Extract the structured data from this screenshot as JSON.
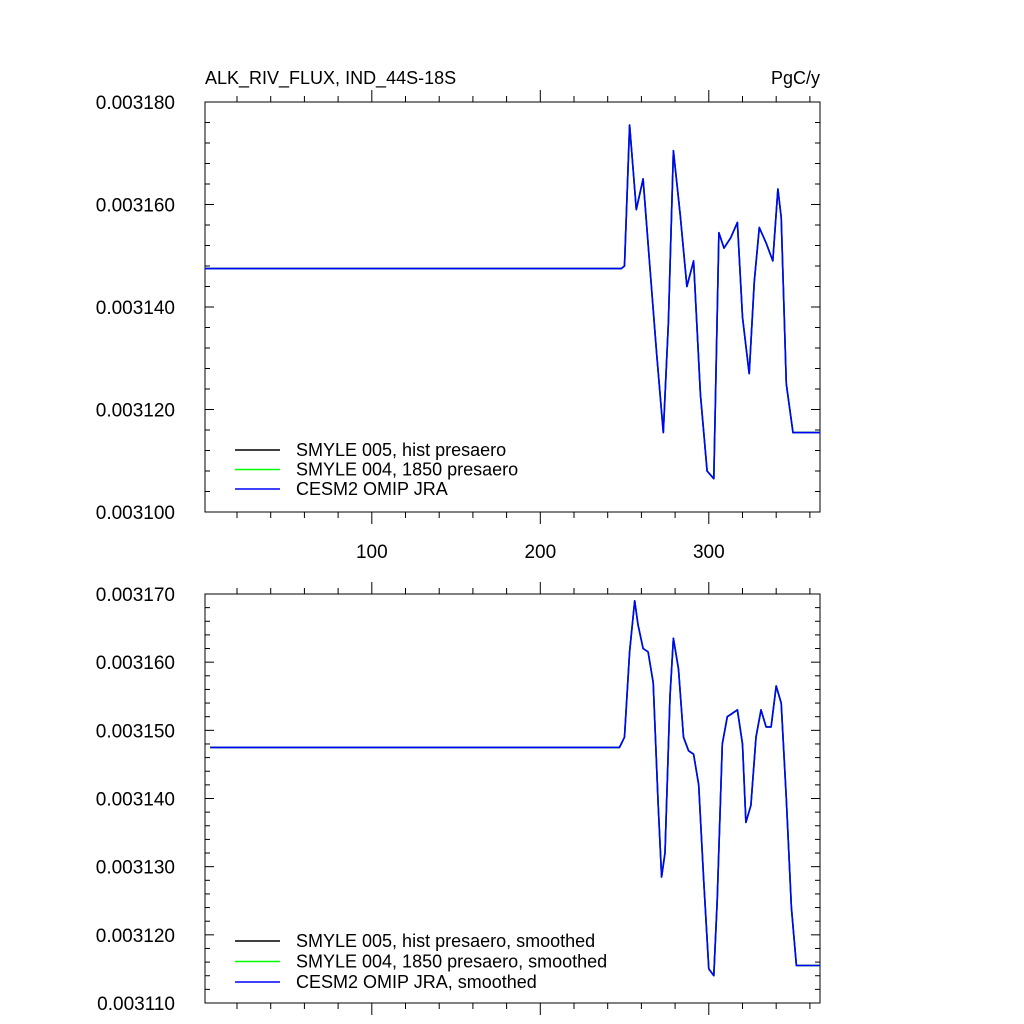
{
  "chart_data": [
    {
      "type": "line",
      "title": "ALK_RIV_FLUX, IND_44S-18S",
      "units": "PgC/y",
      "xlim": [
        1,
        366
      ],
      "ylim": [
        0.0031,
        0.00318
      ],
      "xticks": [
        100,
        200,
        300
      ],
      "xtick_labels": [
        "100",
        "200",
        "300"
      ],
      "yticks": [
        0.0031,
        0.00312,
        0.00314,
        0.00316,
        0.00318
      ],
      "ytick_labels": [
        "0.003100",
        "0.003120",
        "0.003140",
        "0.003160",
        "0.003180"
      ],
      "grid": false,
      "legend_position": "bottom-left",
      "series": [
        {
          "name": "SMYLE 005, hist presaero",
          "color": "#000000",
          "x": [
            1,
            248,
            250,
            253,
            257,
            261,
            265,
            269,
            273,
            276,
            279,
            283,
            287,
            291,
            295,
            299,
            303,
            306,
            309,
            313,
            317,
            320,
            324,
            327,
            330,
            334,
            338,
            341,
            343,
            346,
            350,
            366
          ],
          "y": [
            0.0031475,
            0.0031475,
            0.003148,
            0.0031755,
            0.003159,
            0.003165,
            0.003148,
            0.003131,
            0.0031155,
            0.003137,
            0.0031705,
            0.003158,
            0.003144,
            0.003149,
            0.003123,
            0.003108,
            0.0031065,
            0.0031545,
            0.0031515,
            0.0031535,
            0.0031565,
            0.003138,
            0.003127,
            0.003145,
            0.0031555,
            0.0031525,
            0.003149,
            0.003163,
            0.0031575,
            0.003125,
            0.0031155,
            0.0031155
          ]
        },
        {
          "name": "SMYLE 004, 1850 presaero",
          "color": "#00ff00",
          "x": [
            1,
            248,
            250,
            253,
            257,
            261,
            265,
            269,
            273,
            276,
            279,
            283,
            287,
            291,
            295,
            299,
            303,
            306,
            309,
            313,
            317,
            320,
            324,
            327,
            330,
            334,
            338,
            341,
            343,
            346,
            350,
            366
          ],
          "y": [
            0.0031475,
            0.0031475,
            0.003148,
            0.0031755,
            0.003159,
            0.003165,
            0.003148,
            0.003131,
            0.0031155,
            0.003137,
            0.0031705,
            0.003158,
            0.003144,
            0.003149,
            0.003123,
            0.003108,
            0.0031065,
            0.0031545,
            0.0031515,
            0.0031535,
            0.0031565,
            0.003138,
            0.003127,
            0.003145,
            0.0031555,
            0.0031525,
            0.003149,
            0.003163,
            0.0031575,
            0.003125,
            0.0031155,
            0.0031155
          ]
        },
        {
          "name": "CESM2 OMIP JRA",
          "color": "#0000ff",
          "x": [
            1,
            248,
            250,
            253,
            257,
            261,
            265,
            269,
            273,
            276,
            279,
            283,
            287,
            291,
            295,
            299,
            303,
            306,
            309,
            313,
            317,
            320,
            324,
            327,
            330,
            334,
            338,
            341,
            343,
            346,
            350,
            366
          ],
          "y": [
            0.0031475,
            0.0031475,
            0.003148,
            0.0031755,
            0.003159,
            0.003165,
            0.003148,
            0.003131,
            0.0031155,
            0.003137,
            0.0031705,
            0.003158,
            0.003144,
            0.003149,
            0.003123,
            0.003108,
            0.0031065,
            0.0031545,
            0.0031515,
            0.0031535,
            0.0031565,
            0.003138,
            0.003127,
            0.003145,
            0.0031555,
            0.0031525,
            0.003149,
            0.003163,
            0.0031575,
            0.003125,
            0.0031155,
            0.0031155
          ]
        }
      ]
    },
    {
      "type": "line",
      "title": "",
      "xlim": [
        1,
        366
      ],
      "ylim": [
        0.00311,
        0.00317
      ],
      "xticks": [
        100,
        200,
        300
      ],
      "xtick_labels": [],
      "yticks": [
        0.00311,
        0.00312,
        0.00313,
        0.00314,
        0.00315,
        0.00316,
        0.00317
      ],
      "ytick_labels": [
        "0.003110",
        "0.003120",
        "0.003130",
        "0.003140",
        "0.003150",
        "0.003160",
        "0.003170"
      ],
      "grid": false,
      "legend_position": "bottom-left",
      "series": [
        {
          "name": "SMYLE 005, hist presaero, smoothed",
          "color": "#000000",
          "x": [
            4,
            247,
            250,
            253,
            256,
            258,
            261,
            264,
            267,
            270,
            272,
            274,
            277,
            279,
            282,
            285,
            288,
            291,
            294,
            297,
            300,
            303,
            305,
            308,
            311,
            314,
            317,
            320,
            322,
            325,
            328,
            331,
            334,
            337,
            340,
            343,
            346,
            349,
            352,
            366
          ],
          "y": [
            0.0031475,
            0.0031475,
            0.003149,
            0.0031615,
            0.003169,
            0.0031655,
            0.003162,
            0.0031615,
            0.003157,
            0.003139,
            0.0031285,
            0.003132,
            0.003155,
            0.0031635,
            0.003159,
            0.003149,
            0.003147,
            0.0031465,
            0.003142,
            0.003128,
            0.003115,
            0.003114,
            0.003125,
            0.003148,
            0.003152,
            0.0031525,
            0.003153,
            0.003148,
            0.0031365,
            0.003139,
            0.003149,
            0.003153,
            0.0031505,
            0.0031505,
            0.0031565,
            0.003154,
            0.00314,
            0.003124,
            0.0031155,
            0.0031155
          ]
        },
        {
          "name": "SMYLE 004, 1850 presaero, smoothed",
          "color": "#00ff00",
          "x": [
            4,
            247,
            250,
            253,
            256,
            258,
            261,
            264,
            267,
            270,
            272,
            274,
            277,
            279,
            282,
            285,
            288,
            291,
            294,
            297,
            300,
            303,
            305,
            308,
            311,
            314,
            317,
            320,
            322,
            325,
            328,
            331,
            334,
            337,
            340,
            343,
            346,
            349,
            352,
            366
          ],
          "y": [
            0.0031475,
            0.0031475,
            0.003149,
            0.0031615,
            0.003169,
            0.0031655,
            0.003162,
            0.0031615,
            0.003157,
            0.003139,
            0.0031285,
            0.003132,
            0.003155,
            0.0031635,
            0.003159,
            0.003149,
            0.003147,
            0.0031465,
            0.003142,
            0.003128,
            0.003115,
            0.003114,
            0.003125,
            0.003148,
            0.003152,
            0.0031525,
            0.003153,
            0.003148,
            0.0031365,
            0.003139,
            0.003149,
            0.003153,
            0.0031505,
            0.0031505,
            0.0031565,
            0.003154,
            0.00314,
            0.003124,
            0.0031155,
            0.0031155
          ]
        },
        {
          "name": "CESM2 OMIP JRA, smoothed",
          "color": "#0000ff",
          "x": [
            4,
            247,
            250,
            253,
            256,
            258,
            261,
            264,
            267,
            270,
            272,
            274,
            277,
            279,
            282,
            285,
            288,
            291,
            294,
            297,
            300,
            303,
            305,
            308,
            311,
            314,
            317,
            320,
            322,
            325,
            328,
            331,
            334,
            337,
            340,
            343,
            346,
            349,
            352,
            366
          ],
          "y": [
            0.0031475,
            0.0031475,
            0.003149,
            0.0031615,
            0.003169,
            0.0031655,
            0.003162,
            0.0031615,
            0.003157,
            0.003139,
            0.0031285,
            0.003132,
            0.003155,
            0.0031635,
            0.003159,
            0.003149,
            0.003147,
            0.0031465,
            0.003142,
            0.003128,
            0.003115,
            0.003114,
            0.003125,
            0.003148,
            0.003152,
            0.0031525,
            0.003153,
            0.003148,
            0.0031365,
            0.003139,
            0.003149,
            0.003153,
            0.0031505,
            0.0031505,
            0.0031565,
            0.003154,
            0.00314,
            0.003124,
            0.0031155,
            0.0031155
          ]
        }
      ]
    }
  ]
}
